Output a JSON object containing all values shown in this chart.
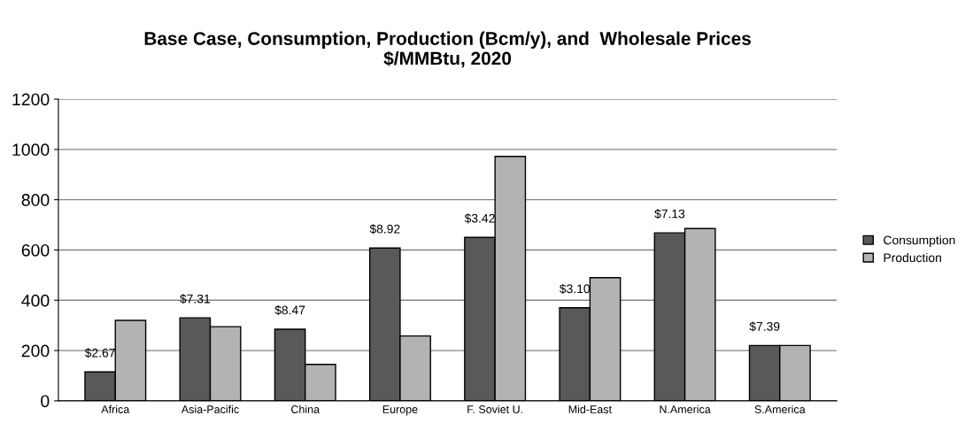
{
  "chart_data": {
    "type": "bar",
    "title": "Base Case, Consumption, Production (Bcm/y), and  Wholesale Prices\n$/MMBtu, 2020",
    "categories": [
      "Africa",
      "Asia-Pacific",
      "China",
      "Europe",
      "F. Soviet U.",
      "Mid-East",
      "N.America",
      "S.America"
    ],
    "series": [
      {
        "name": "Consumption",
        "color": "#595959",
        "values": [
          115,
          330,
          285,
          608,
          650,
          370,
          668,
          220
        ]
      },
      {
        "name": "Production",
        "color": "#b3b3b3",
        "values": [
          320,
          295,
          145,
          258,
          972,
          490,
          685,
          220
        ]
      }
    ],
    "annotations": [
      {
        "text": "$2.67",
        "x": "Africa",
        "y": 115
      },
      {
        "text": "$7.31",
        "x": "Asia-Pacific",
        "y": 330
      },
      {
        "text": "$8.47",
        "x": "China",
        "y": 285
      },
      {
        "text": "$8.92",
        "x": "Europe",
        "y": 608
      },
      {
        "text": "$3.42",
        "x": "F. Soviet U.",
        "y": 650
      },
      {
        "text": "$3.10",
        "x": "Mid-East",
        "y": 370
      },
      {
        "text": "$7.13",
        "x": "N.America",
        "y": 668
      },
      {
        "text": "$7.39",
        "x": "S.America",
        "y": 220
      }
    ],
    "ylim": [
      0,
      1200
    ],
    "yticks": [
      0,
      200,
      400,
      600,
      800,
      1000,
      1200
    ],
    "grid": "y",
    "legend": "right"
  }
}
